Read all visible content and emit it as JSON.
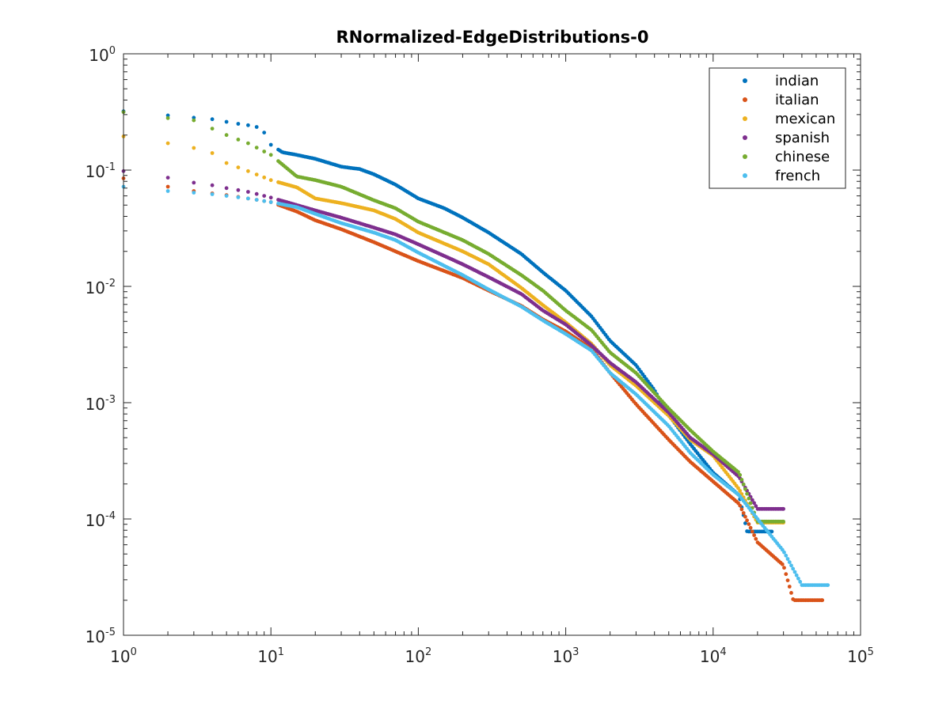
{
  "chart_data": {
    "type": "scatter",
    "title": "RNormalized-EdgeDistributions-0",
    "xlabel": "",
    "ylabel": "",
    "x_scale": "log",
    "y_scale": "log",
    "xlim": [
      1,
      100000
    ],
    "ylim": [
      1e-05,
      1
    ],
    "x_ticks": [
      {
        "base": "10",
        "exp": "0",
        "value": 1
      },
      {
        "base": "10",
        "exp": "1",
        "value": 10
      },
      {
        "base": "10",
        "exp": "2",
        "value": 100
      },
      {
        "base": "10",
        "exp": "3",
        "value": 1000
      },
      {
        "base": "10",
        "exp": "4",
        "value": 10000
      },
      {
        "base": "10",
        "exp": "5",
        "value": 100000
      }
    ],
    "y_ticks": [
      {
        "base": "10",
        "exp": "0",
        "value": 1
      },
      {
        "base": "10",
        "exp": "-1",
        "value": 0.1
      },
      {
        "base": "10",
        "exp": "-2",
        "value": 0.01
      },
      {
        "base": "10",
        "exp": "-3",
        "value": 0.001
      },
      {
        "base": "10",
        "exp": "-4",
        "value": 0.0001
      },
      {
        "base": "10",
        "exp": "-5",
        "value": 1e-05
      }
    ],
    "grid": false,
    "legend_position": "top-right",
    "series": [
      {
        "name": "indian",
        "color": "#0072BD",
        "x": [
          1,
          2,
          3,
          4,
          5,
          6,
          7,
          8,
          9,
          10,
          12,
          15,
          20,
          30,
          40,
          50,
          70,
          100,
          150,
          200,
          300,
          500,
          700,
          1000,
          1500,
          2000,
          3000,
          4000,
          5000,
          7000,
          10000,
          15000,
          17000,
          25000
        ],
        "y": [
          0.32,
          0.295,
          0.282,
          0.274,
          0.26,
          0.25,
          0.243,
          0.235,
          0.21,
          0.165,
          0.142,
          0.135,
          0.125,
          0.107,
          0.102,
          0.092,
          0.075,
          0.057,
          0.047,
          0.039,
          0.029,
          0.019,
          0.0132,
          0.0092,
          0.0055,
          0.0034,
          0.0021,
          0.00128,
          0.00078,
          0.00044,
          0.00025,
          0.00016,
          7.8e-05,
          7.8e-05
        ]
      },
      {
        "name": "italian",
        "color": "#D95319",
        "x": [
          1,
          2,
          3,
          4,
          5,
          7,
          10,
          15,
          20,
          30,
          50,
          70,
          100,
          200,
          300,
          500,
          700,
          1000,
          1500,
          2000,
          3000,
          5000,
          7000,
          10000,
          15000,
          20000,
          30000,
          35000,
          55000
        ],
        "y": [
          0.085,
          0.072,
          0.066,
          0.063,
          0.061,
          0.057,
          0.053,
          0.044,
          0.037,
          0.031,
          0.024,
          0.02,
          0.0165,
          0.0118,
          0.0092,
          0.0068,
          0.0052,
          0.0041,
          0.0029,
          0.0018,
          0.00097,
          0.00048,
          0.00031,
          0.00021,
          0.000135,
          6.3e-05,
          4e-05,
          2e-05,
          2e-05
        ]
      },
      {
        "name": "mexican",
        "color": "#EDB120",
        "x": [
          1,
          2,
          3,
          4,
          5,
          7,
          10,
          15,
          20,
          30,
          50,
          70,
          100,
          200,
          300,
          500,
          700,
          1000,
          1500,
          2000,
          3000,
          5000,
          7000,
          10000,
          15000,
          20000,
          30000
        ],
        "y": [
          0.195,
          0.17,
          0.155,
          0.14,
          0.115,
          0.098,
          0.082,
          0.071,
          0.057,
          0.052,
          0.045,
          0.038,
          0.029,
          0.02,
          0.0155,
          0.0097,
          0.0069,
          0.0049,
          0.0032,
          0.0021,
          0.0014,
          0.00077,
          0.00048,
          0.00035,
          0.00018,
          9.3e-05,
          9.3e-05
        ]
      },
      {
        "name": "spanish",
        "color": "#7E2F8E",
        "x": [
          1,
          2,
          3,
          4,
          5,
          7,
          10,
          15,
          20,
          30,
          50,
          70,
          100,
          200,
          300,
          500,
          700,
          1000,
          1500,
          2000,
          3000,
          5000,
          7000,
          10000,
          15000,
          20000,
          30000
        ],
        "y": [
          0.098,
          0.086,
          0.078,
          0.074,
          0.07,
          0.065,
          0.058,
          0.05,
          0.045,
          0.039,
          0.032,
          0.028,
          0.023,
          0.0155,
          0.012,
          0.0086,
          0.0062,
          0.0047,
          0.0031,
          0.0022,
          0.0015,
          0.00082,
          0.0005,
          0.00036,
          0.00023,
          0.000122,
          0.000122
        ]
      },
      {
        "name": "chinese",
        "color": "#77AC30",
        "x": [
          1,
          2,
          3,
          5,
          7,
          10,
          15,
          20,
          30,
          50,
          70,
          100,
          200,
          300,
          500,
          700,
          1000,
          1500,
          2000,
          3000,
          5000,
          7000,
          10000,
          15000,
          20000,
          30000
        ],
        "y": [
          0.315,
          0.28,
          0.268,
          0.2,
          0.17,
          0.135,
          0.088,
          0.082,
          0.072,
          0.055,
          0.047,
          0.036,
          0.025,
          0.019,
          0.0125,
          0.0092,
          0.0062,
          0.0042,
          0.0027,
          0.0018,
          0.00089,
          0.00058,
          0.00038,
          0.00025,
          9.5e-05,
          9.5e-05
        ]
      },
      {
        "name": "french",
        "color": "#4DBEEE",
        "x": [
          1,
          2,
          3,
          4,
          5,
          7,
          10,
          15,
          20,
          30,
          50,
          70,
          100,
          200,
          300,
          500,
          700,
          1000,
          1500,
          2000,
          3000,
          5000,
          7000,
          10000,
          15000,
          20000,
          30000,
          40000,
          60000
        ],
        "y": [
          0.072,
          0.066,
          0.064,
          0.062,
          0.06,
          0.057,
          0.053,
          0.048,
          0.042,
          0.035,
          0.029,
          0.025,
          0.0195,
          0.0125,
          0.0094,
          0.0067,
          0.0051,
          0.0039,
          0.0028,
          0.0018,
          0.00118,
          0.00063,
          0.00037,
          0.00024,
          0.00016,
          0.0001,
          5.3e-05,
          2.7e-05,
          2.7e-05
        ]
      }
    ]
  }
}
